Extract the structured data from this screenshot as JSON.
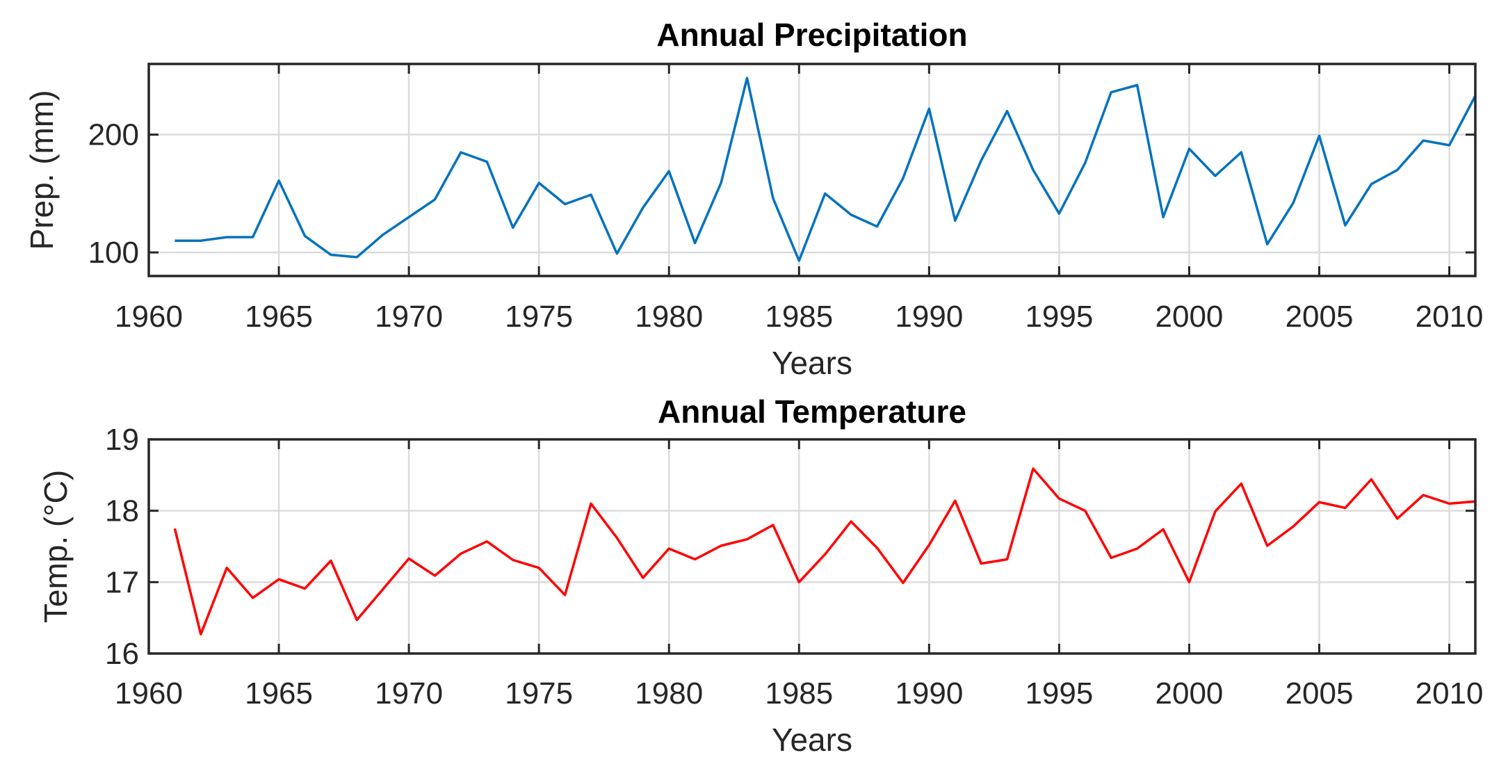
{
  "chart_data": [
    {
      "type": "line",
      "title": "Annual Precipitation",
      "xlabel": "Years",
      "ylabel": "Prep. (mm)",
      "xlim": [
        1960,
        2011
      ],
      "ylim": [
        80,
        260
      ],
      "xticks": [
        1960,
        1965,
        1970,
        1975,
        1980,
        1985,
        1990,
        1995,
        2000,
        2005,
        2010
      ],
      "yticks": [
        100,
        200
      ],
      "grid": true,
      "series": [
        {
          "color": "#0072bd",
          "x": [
            1961,
            1962,
            1963,
            1964,
            1965,
            1966,
            1967,
            1968,
            1969,
            1970,
            1971,
            1972,
            1973,
            1974,
            1975,
            1976,
            1977,
            1978,
            1979,
            1980,
            1981,
            1982,
            1983,
            1984,
            1985,
            1986,
            1987,
            1988,
            1989,
            1990,
            1991,
            1992,
            1993,
            1994,
            1995,
            1996,
            1997,
            1998,
            1999,
            2000,
            2001,
            2002,
            2003,
            2004,
            2005,
            2006,
            2007,
            2008,
            2009,
            2010,
            2011
          ],
          "values": [
            110,
            110,
            113,
            113,
            161,
            114,
            98,
            96,
            115,
            130,
            145,
            185,
            177,
            121,
            159,
            141,
            149,
            99,
            138,
            169,
            108,
            159,
            248,
            146,
            93,
            150,
            132,
            122,
            163,
            222,
            127,
            178,
            220,
            170,
            133,
            176,
            236,
            242,
            130,
            188,
            165,
            185,
            107,
            142,
            199,
            123,
            158,
            170,
            195,
            191,
            233
          ]
        }
      ]
    },
    {
      "type": "line",
      "title": "Annual Temperature",
      "xlabel": "Years",
      "ylabel": "Temp. (°C)",
      "xlim": [
        1960,
        2011
      ],
      "ylim": [
        16,
        19
      ],
      "xticks": [
        1960,
        1965,
        1970,
        1975,
        1980,
        1985,
        1990,
        1995,
        2000,
        2005,
        2010
      ],
      "yticks": [
        16,
        17,
        18,
        19
      ],
      "grid": true,
      "series": [
        {
          "color": "#ff0000",
          "x": [
            1961,
            1962,
            1963,
            1964,
            1965,
            1966,
            1967,
            1968,
            1969,
            1970,
            1971,
            1972,
            1973,
            1974,
            1975,
            1976,
            1977,
            1978,
            1979,
            1980,
            1981,
            1982,
            1983,
            1984,
            1985,
            1986,
            1987,
            1988,
            1989,
            1990,
            1991,
            1992,
            1993,
            1994,
            1995,
            1996,
            1997,
            1998,
            1999,
            2000,
            2001,
            2002,
            2003,
            2004,
            2005,
            2006,
            2007,
            2008,
            2009,
            2010,
            2011
          ],
          "values": [
            17.75,
            16.27,
            17.2,
            16.78,
            17.04,
            16.91,
            17.3,
            16.47,
            16.9,
            17.33,
            17.09,
            17.4,
            17.57,
            17.31,
            17.2,
            16.82,
            18.1,
            17.62,
            17.06,
            17.47,
            17.32,
            17.51,
            17.6,
            17.8,
            17.0,
            17.39,
            17.85,
            17.48,
            16.99,
            17.52,
            18.14,
            17.26,
            17.32,
            18.59,
            18.17,
            18.0,
            17.34,
            17.47,
            17.74,
            17.0,
            17.99,
            18.38,
            17.51,
            17.78,
            18.12,
            18.04,
            18.44,
            17.89,
            18.22,
            18.1,
            18.13
          ]
        }
      ]
    }
  ]
}
